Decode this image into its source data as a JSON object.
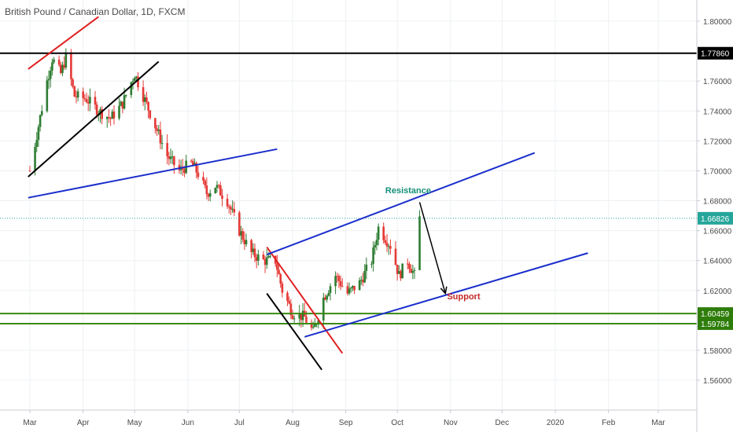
{
  "header": {
    "title": "British Pound / Canadian Dollar, 1D, FXCM"
  },
  "chart_data": {
    "type": "candlestick",
    "title": "British Pound / Canadian Dollar, 1D, FXCM",
    "ylim": [
      1.54,
      1.82
    ],
    "y_ticks": [
      "1.80000",
      "1.76000",
      "1.74000",
      "1.72000",
      "1.70000",
      "1.68000",
      "1.66000",
      "1.64000",
      "1.62000",
      "1.58000",
      "1.56000"
    ],
    "y_tick_values": [
      1.8,
      1.76,
      1.74,
      1.72,
      1.7,
      1.68,
      1.66,
      1.64,
      1.62,
      1.58,
      1.56
    ],
    "x_ticks": [
      "Mar",
      "Apr",
      "May",
      "Jun",
      "Jul",
      "Aug",
      "Sep",
      "Oct",
      "Nov",
      "Dec",
      "2020",
      "Feb",
      "Mar"
    ],
    "x_tick_days": [
      0,
      31,
      61,
      92,
      122,
      153,
      184,
      214,
      245,
      275,
      306,
      337,
      366
    ],
    "date_range": [
      "2019-03-01",
      "2020-03-01"
    ],
    "current_price": {
      "value": 1.66826,
      "label": "1.66826",
      "color": "#26a69a"
    },
    "price_labels": [
      {
        "value": 1.7786,
        "label": "1.77860",
        "color": "#000000"
      },
      {
        "value": 1.60459,
        "label": "1.60459",
        "color": "#2e7d0a"
      },
      {
        "value": 1.59784,
        "label": "1.59784",
        "color": "#2e7d0a"
      }
    ],
    "horizontal_lines": [
      {
        "value": 1.7786,
        "color": "#000000"
      },
      {
        "value": 1.60459,
        "color": "#3a8a12"
      },
      {
        "value": 1.59784,
        "color": "#3a8a12"
      }
    ],
    "trend_lines": [
      {
        "from": [
          "2019-02-28",
          1.768
        ],
        "to": [
          "2019-04-10",
          1.803
        ],
        "color": "#e02020"
      },
      {
        "from": [
          "2019-02-28",
          1.696
        ],
        "to": [
          "2019-05-15",
          1.773
        ],
        "color": "#000000"
      },
      {
        "from": [
          "2019-02-28",
          1.682
        ],
        "to": [
          "2019-07-23",
          1.7145
        ],
        "color": "#1a2ecc"
      },
      {
        "from": [
          "2019-07-17",
          1.649
        ],
        "to": [
          "2019-08-30",
          1.578
        ],
        "color": "#e02020"
      },
      {
        "from": [
          "2019-07-17",
          1.618
        ],
        "to": [
          "2019-08-18",
          1.567
        ],
        "color": "#000000"
      },
      {
        "from": [
          "2019-07-17",
          1.644
        ],
        "to": [
          "2019-12-20",
          1.712
        ],
        "color": "#1a2ecc"
      },
      {
        "from": [
          "2019-08-08",
          1.589
        ],
        "to": [
          "2020-01-20",
          1.645
        ],
        "color": "#1a2ecc"
      }
    ],
    "arrow": {
      "from": [
        "2019-10-14",
        1.679
      ],
      "to": [
        "2019-10-29",
        1.618
      ],
      "color": "#000000"
    },
    "annotations": [
      {
        "text": "Resistance",
        "at": [
          "2019-09-24",
          1.685
        ],
        "color": "#138f78"
      },
      {
        "text": "Support",
        "at": [
          "2019-10-30",
          1.614
        ],
        "color": "#c62828"
      }
    ],
    "up_color": "#2e7d32",
    "down_color": "#e53935",
    "candle_path": [
      [
        "2019-03-01",
        1.7
      ],
      [
        "2019-03-06",
        1.73
      ],
      [
        "2019-03-11",
        1.76
      ],
      [
        "2019-03-14",
        1.775
      ],
      [
        "2019-03-19",
        1.765
      ],
      [
        "2019-03-22",
        1.776
      ],
      [
        "2019-03-27",
        1.75
      ],
      [
        "2019-04-03",
        1.748
      ],
      [
        "2019-04-10",
        1.74
      ],
      [
        "2019-04-17",
        1.735
      ],
      [
        "2019-04-24",
        1.745
      ],
      [
        "2019-05-01",
        1.765
      ],
      [
        "2019-05-06",
        1.75
      ],
      [
        "2019-05-13",
        1.73
      ],
      [
        "2019-05-20",
        1.71
      ],
      [
        "2019-05-27",
        1.7
      ],
      [
        "2019-06-03",
        1.705
      ],
      [
        "2019-06-07",
        1.698
      ],
      [
        "2019-06-12",
        1.685
      ],
      [
        "2019-06-17",
        1.69
      ],
      [
        "2019-06-24",
        1.68
      ],
      [
        "2019-07-01",
        1.66
      ],
      [
        "2019-07-08",
        1.645
      ],
      [
        "2019-07-15",
        1.64
      ],
      [
        "2019-07-22",
        1.64
      ],
      [
        "2019-07-26",
        1.62
      ],
      [
        "2019-08-01",
        1.605
      ],
      [
        "2019-08-08",
        1.602
      ],
      [
        "2019-08-13",
        1.592
      ],
      [
        "2019-08-19",
        1.615
      ],
      [
        "2019-08-26",
        1.63
      ],
      [
        "2019-09-02",
        1.618
      ],
      [
        "2019-09-09",
        1.625
      ],
      [
        "2019-09-16",
        1.64
      ],
      [
        "2019-09-20",
        1.662
      ],
      [
        "2019-09-27",
        1.65
      ],
      [
        "2019-10-02",
        1.63
      ],
      [
        "2019-10-07",
        1.64
      ],
      [
        "2019-10-11",
        1.63
      ],
      [
        "2019-10-14",
        1.6682
      ]
    ]
  }
}
